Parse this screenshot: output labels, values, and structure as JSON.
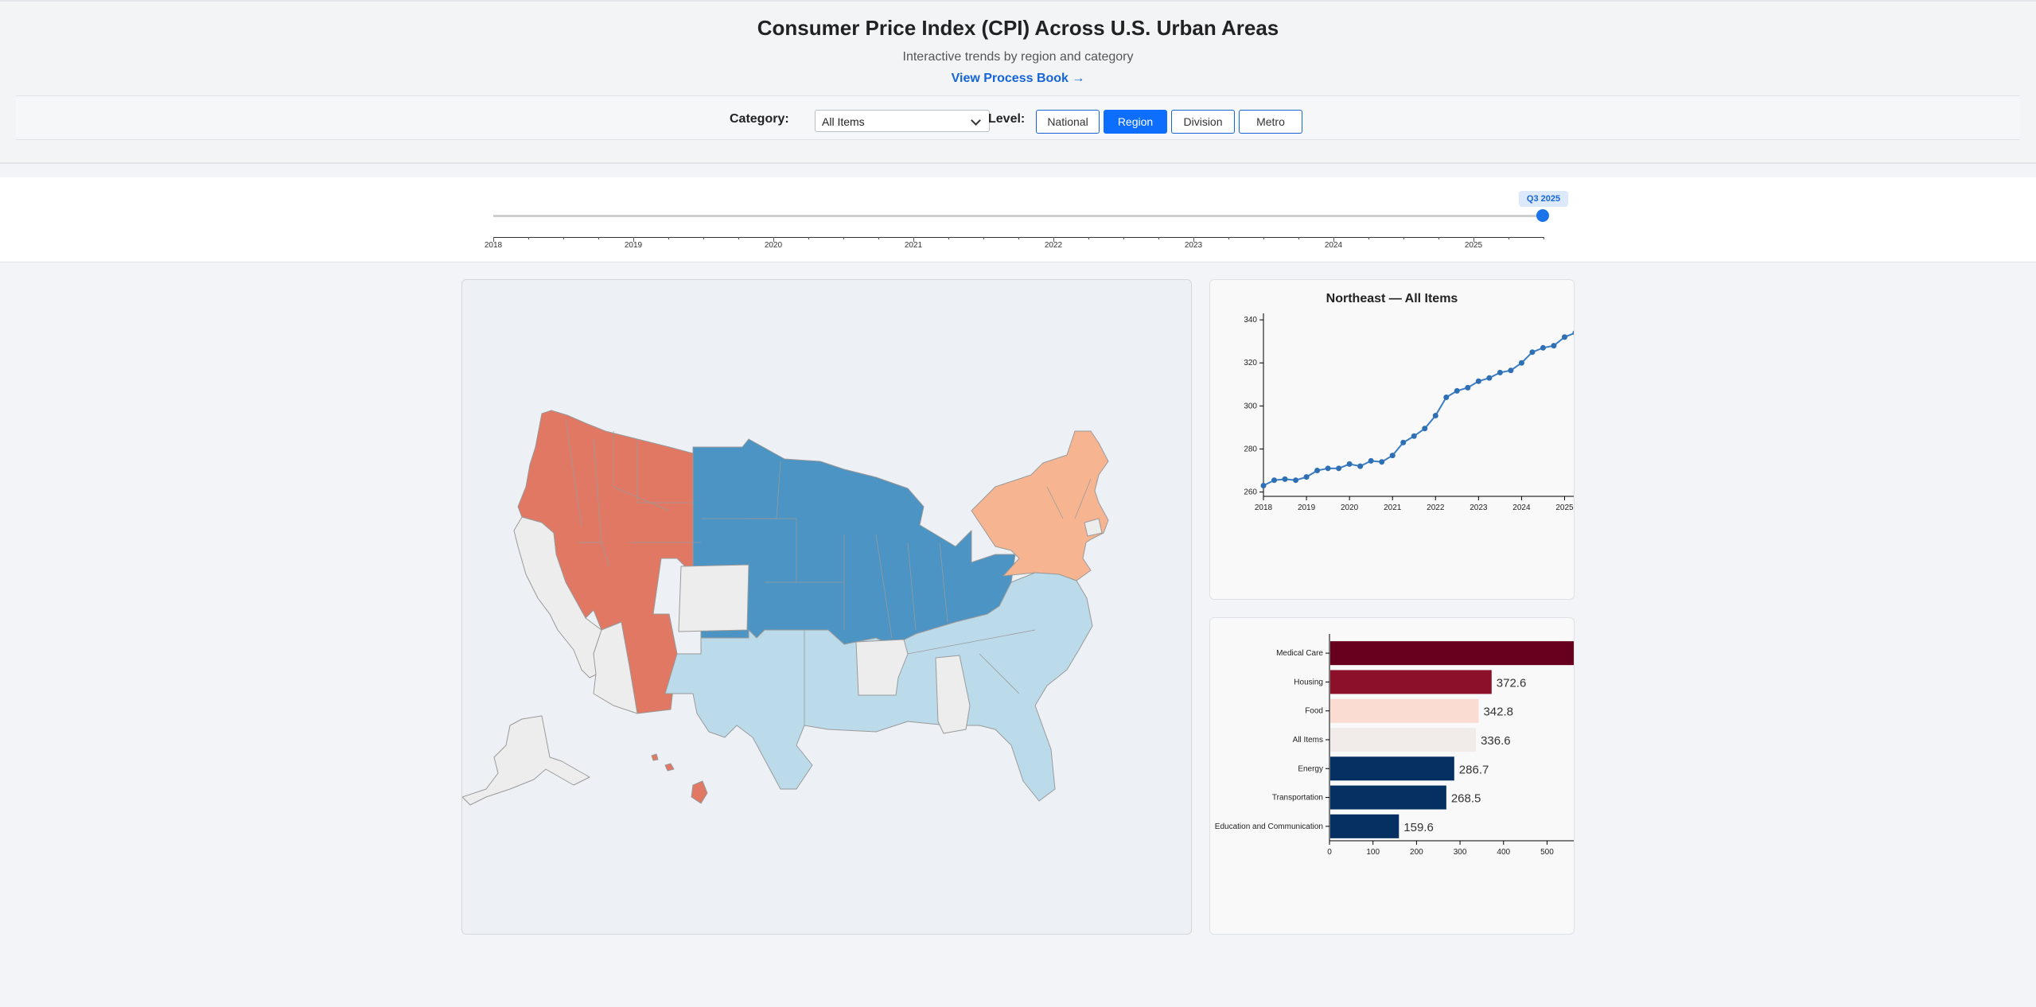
{
  "header": {
    "title": "Consumer Price Index (CPI) Across U.S. Urban Areas",
    "subtitle": "Interactive trends by region and category",
    "process_link": "View Process Book →"
  },
  "controls": {
    "category_label": "Category:",
    "category_value": "All Items",
    "level_label": "Level:",
    "levels": [
      "National",
      "Region",
      "Division",
      "Metro"
    ],
    "active_level": "Region"
  },
  "timeline": {
    "current_label": "Q3 2025",
    "years": [
      "2018",
      "2019",
      "2020",
      "2021",
      "2022",
      "2023",
      "2024",
      "2025"
    ]
  },
  "colors": {
    "west": "#e07863",
    "midwest": "#4b94c4",
    "northeast": "#f7b491",
    "south": "#bcdbea",
    "no_data": "#ededed",
    "accent": "#0d6efd"
  },
  "map": {
    "regions": [
      "West",
      "Midwest",
      "Northeast",
      "South"
    ]
  },
  "line_chart": {
    "title": "Northeast — All Items",
    "chart_data": {
      "type": "line",
      "x_ticks": [
        "2018",
        "2019",
        "2020",
        "2021",
        "2022",
        "2023",
        "2024",
        "2025"
      ],
      "y_ticks": [
        260,
        280,
        300,
        320,
        340
      ],
      "ylim": [
        258,
        343
      ],
      "xlim": [
        2018,
        2025.25
      ],
      "x": [
        2018.0,
        2018.25,
        2018.5,
        2018.75,
        2019.0,
        2019.25,
        2019.5,
        2019.75,
        2020.0,
        2020.25,
        2020.5,
        2020.75,
        2021.0,
        2021.25,
        2021.5,
        2021.75,
        2022.0,
        2022.25,
        2022.5,
        2022.75,
        2023.0,
        2023.25,
        2023.5,
        2023.75,
        2024.0,
        2024.25,
        2024.5,
        2024.75,
        2025.0,
        2025.25
      ],
      "values": [
        263,
        265.5,
        266,
        265.5,
        267,
        270,
        271,
        271,
        273,
        272,
        274.5,
        274,
        277,
        283,
        286,
        289.5,
        295.5,
        304,
        307,
        308.5,
        311.5,
        313,
        315.5,
        316.5,
        320,
        325,
        327,
        328,
        332,
        334
      ]
    }
  },
  "bar_chart": {
    "chart_data": {
      "type": "bar",
      "orientation": "horizontal",
      "categories": [
        "Medical Care",
        "Housing",
        "Food",
        "All Items",
        "Energy",
        "Transportation",
        "Education and Communication"
      ],
      "values": [
        580,
        372.6,
        342.8,
        336.6,
        286.7,
        268.5,
        159.6
      ],
      "value_labels": [
        "",
        "372.6",
        "342.8",
        "336.6",
        "286.7",
        "268.5",
        "159.6"
      ],
      "colors": [
        "#67001f",
        "#8c1029",
        "#fadcd2",
        "#f1ece9",
        "#053061",
        "#053061",
        "#053061"
      ],
      "x_ticks": [
        0,
        100,
        200,
        300,
        400,
        500
      ],
      "xlim": [
        0,
        565
      ]
    }
  }
}
